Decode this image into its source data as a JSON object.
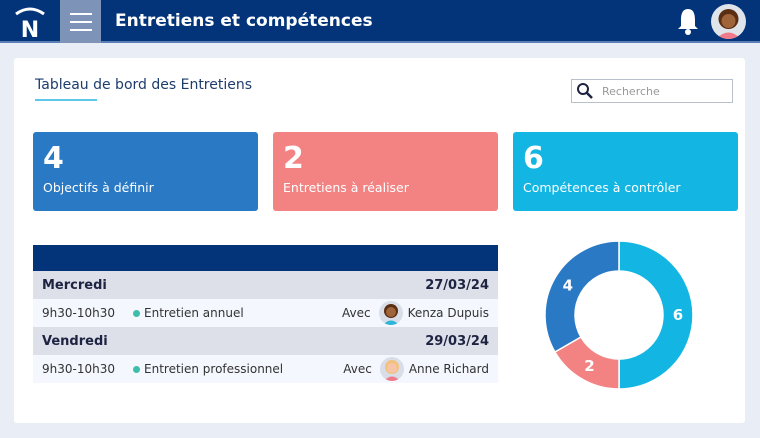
{
  "header": {
    "title": "Entretiens et compétences",
    "logo_letter": "N"
  },
  "panel": {
    "title": "Tableau de bord des Entretiens",
    "search_placeholder": "Recherche"
  },
  "cards": [
    {
      "value": "4",
      "label": "Objectifs à définir",
      "color": "#2a79c4"
    },
    {
      "value": "2",
      "label": "Entretiens à réaliser",
      "color": "#f38383"
    },
    {
      "value": "6",
      "label": "Compétences à contrôler",
      "color": "#13b6e3"
    }
  ],
  "schedule": [
    {
      "day": "Mercredi",
      "date": "27/03/24",
      "time": "9h30-10h30",
      "type": "Entretien annuel",
      "with": "Avec",
      "person": "Kenza Dupuis"
    },
    {
      "day": "Vendredi",
      "date": "29/03/24",
      "time": "9h30-10h30",
      "type": "Entretien professionnel",
      "with": "Avec",
      "person": "Anne Richard"
    }
  ],
  "chart_data": {
    "type": "pie",
    "donut": true,
    "labels": [
      "6",
      "2",
      "4"
    ],
    "values": [
      6,
      2,
      4
    ],
    "colors": [
      "#13b6e3",
      "#f38383",
      "#2a79c4"
    ]
  }
}
